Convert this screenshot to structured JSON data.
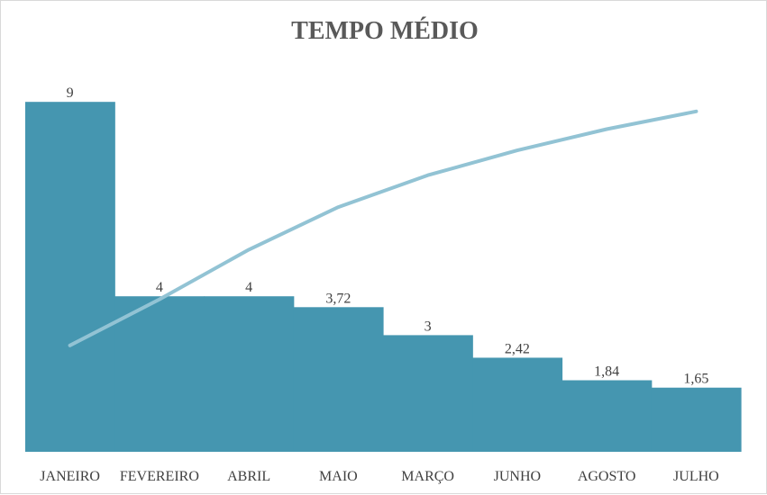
{
  "chart_data": {
    "type": "bar",
    "title": "TEMPO MÉDIO",
    "xlabel": "",
    "ylabel": "",
    "categories": [
      "JANEIRO",
      "FEVEREIRO",
      "ABRIL",
      "MAIO",
      "MARÇO",
      "JUNHO",
      "AGOSTO",
      "JULHO"
    ],
    "series": [
      {
        "type": "bar",
        "values": [
          9,
          4,
          4,
          3.72,
          3,
          2.42,
          1.84,
          1.65
        ],
        "labels": [
          "9",
          "4",
          "4",
          "3,72",
          "3",
          "2,42",
          "1,84",
          "1,65"
        ],
        "color": "#4596b0"
      },
      {
        "type": "line",
        "values": [
          30,
          43,
          57,
          69,
          78,
          85,
          91,
          96
        ],
        "color": "#92c3d4"
      }
    ],
    "ylim": [
      0,
      10
    ],
    "line_ylim": [
      0,
      110
    ],
    "grid": false,
    "legend": "none"
  }
}
